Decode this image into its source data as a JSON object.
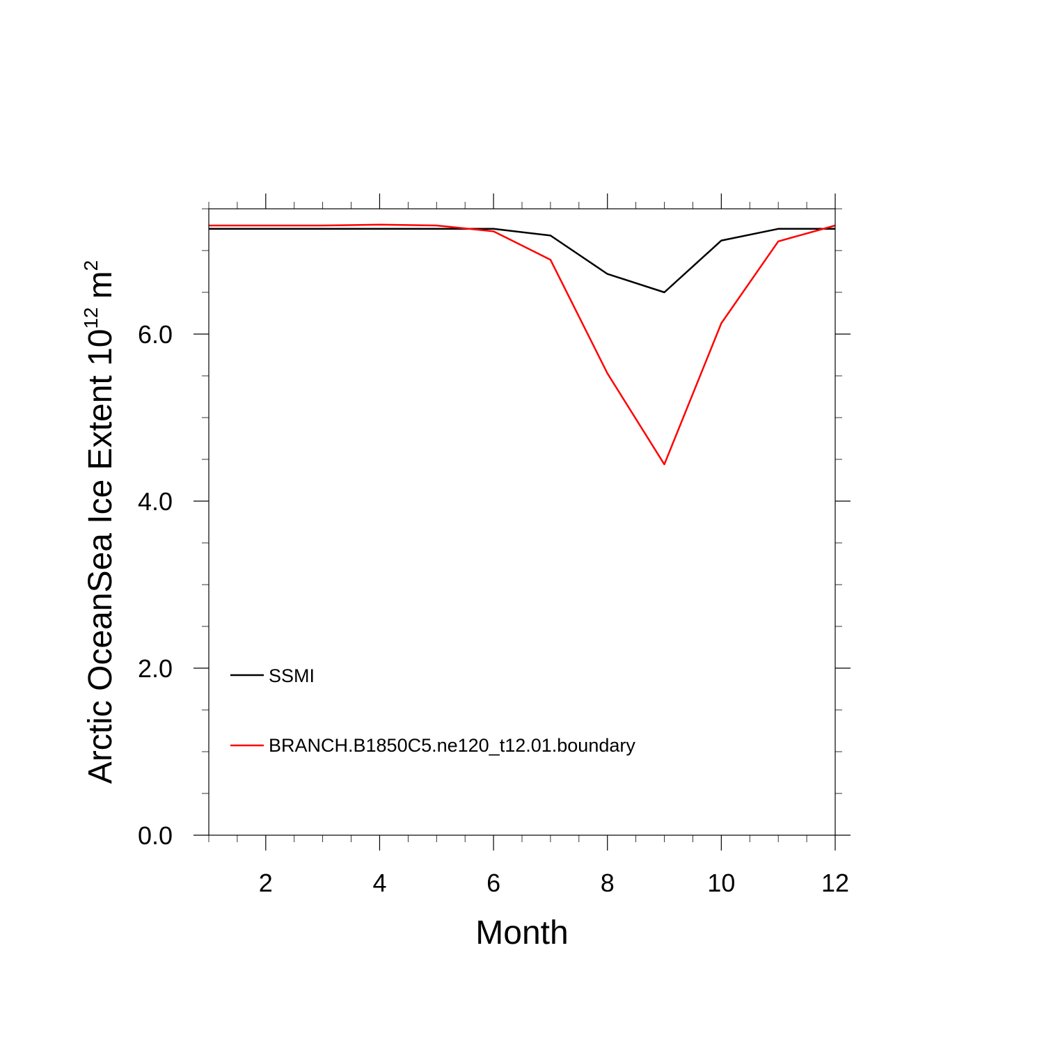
{
  "chart_data": {
    "type": "line",
    "title": "",
    "xlabel": "Month",
    "ylabel": "Arctic OceanSea Ice Extent 10",
    "ylabel_sup": "12",
    "ylabel_unit": "m",
    "ylabel_unit_sup": "2",
    "xlim": [
      1,
      12
    ],
    "ylim": [
      0,
      7.5
    ],
    "x_ticks": [
      2,
      4,
      6,
      8,
      10,
      12
    ],
    "x_tick_labels": [
      "2",
      "4",
      "6",
      "8",
      "10",
      "12"
    ],
    "y_ticks": [
      0,
      2,
      4,
      6
    ],
    "y_tick_labels": [
      "0.0",
      "2.0",
      "4.0",
      "6.0"
    ],
    "x_minor_step": 0.5,
    "y_minor_step": 0.5,
    "grid": false,
    "legend_position": "bottom-left",
    "x": [
      1,
      2,
      3,
      4,
      5,
      6,
      7,
      8,
      9,
      10,
      11,
      12
    ],
    "series": [
      {
        "name": "SSMI",
        "color": "#000000",
        "values": [
          7.26,
          7.26,
          7.26,
          7.26,
          7.26,
          7.26,
          7.18,
          6.72,
          6.5,
          7.12,
          7.26,
          7.26
        ]
      },
      {
        "name": "BRANCH.B1850C5.ne120_t12.01.boundary",
        "color": "#ff0000",
        "values": [
          7.3,
          7.3,
          7.3,
          7.31,
          7.3,
          7.23,
          6.89,
          5.53,
          4.44,
          6.13,
          7.11,
          7.3
        ]
      }
    ]
  }
}
